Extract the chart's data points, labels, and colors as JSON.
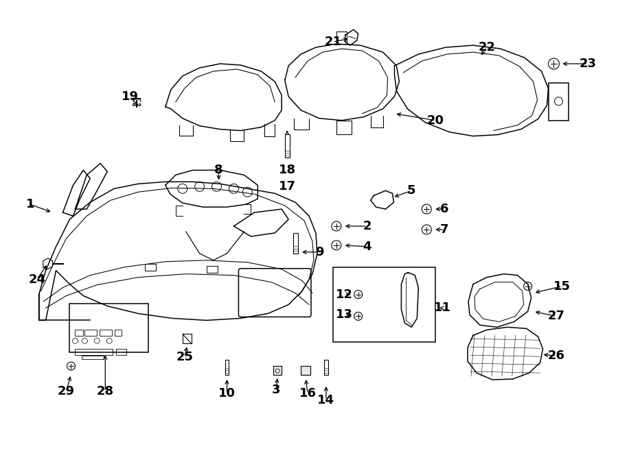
{
  "background_color": "#ffffff",
  "line_color": "#000000",
  "fig_width": 9.0,
  "fig_height": 6.61
}
